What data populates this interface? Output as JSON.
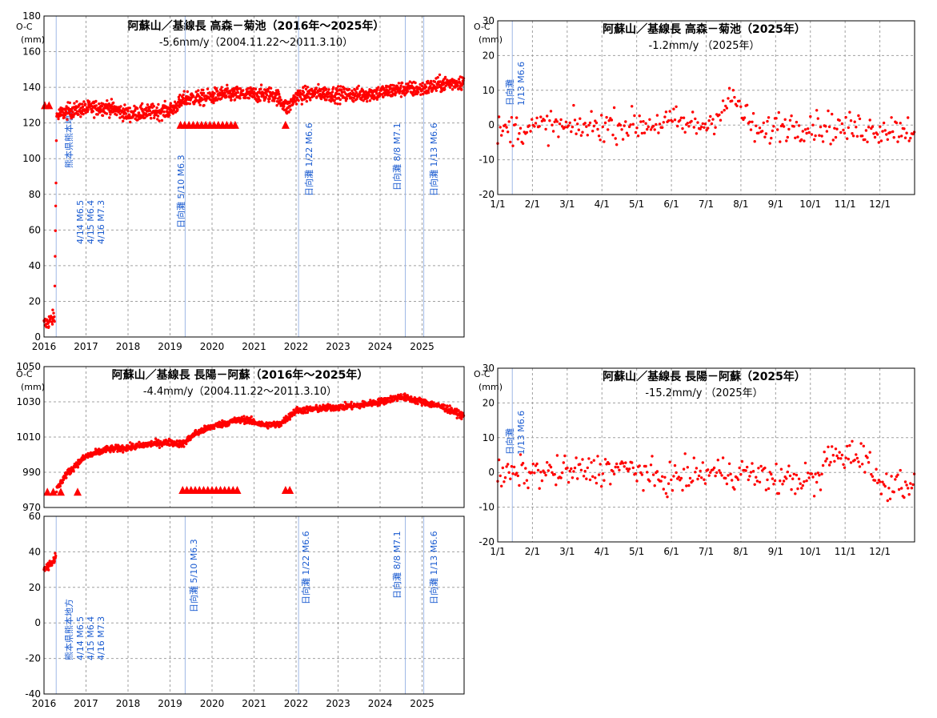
{
  "colors": {
    "dots": "#ff0000",
    "events": "#1a5bd0",
    "grid": "#a0a0a0"
  },
  "years": [
    "2016",
    "2017",
    "2018",
    "2019",
    "2020",
    "2021",
    "2022",
    "2023",
    "2024",
    "2025"
  ],
  "months": [
    "1/1",
    "2/1",
    "3/1",
    "4/1",
    "5/1",
    "6/1",
    "7/1",
    "8/1",
    "9/1",
    "10/1",
    "11/1",
    "12/1"
  ],
  "events": {
    "kumamoto": [
      "熊本県熊本地方",
      "4/14 M6.5",
      "4/15 M6.4",
      "4/16 M7.3"
    ],
    "hyuga_2019": "日向灘 5/10 M6.3",
    "hyuga_2022": "日向灘 1/22 M6.6",
    "hyuga_2024": "日向灘 8/8 M7.1",
    "hyuga_2025": "日向灘 1/13 M6.6"
  },
  "chart_data": [
    {
      "type": "scatter",
      "title": "阿蘇山／基線長 高森－菊池（2016年～2025年）",
      "subtitle": "-5.6mm/y（2004.11.22～2011.3.10）",
      "ylabel": "O-C (mm)",
      "xlim": [
        2016,
        2026
      ],
      "ylim": [
        0,
        180
      ],
      "yticks": [
        0,
        20,
        40,
        60,
        80,
        100,
        120,
        140,
        160,
        180
      ],
      "trend": [
        {
          "x": 2016.0,
          "y": 7
        },
        {
          "x": 2016.25,
          "y": 11
        },
        {
          "x": 2016.3,
          "y": 124
        },
        {
          "x": 2016.6,
          "y": 127
        },
        {
          "x": 2017.0,
          "y": 128
        },
        {
          "x": 2017.5,
          "y": 129
        },
        {
          "x": 2018.0,
          "y": 125
        },
        {
          "x": 2018.5,
          "y": 126
        },
        {
          "x": 2019.0,
          "y": 127
        },
        {
          "x": 2019.4,
          "y": 134
        },
        {
          "x": 2019.8,
          "y": 134
        },
        {
          "x": 2020.2,
          "y": 136
        },
        {
          "x": 2020.6,
          "y": 136
        },
        {
          "x": 2021.0,
          "y": 136
        },
        {
          "x": 2021.5,
          "y": 136
        },
        {
          "x": 2021.8,
          "y": 128
        },
        {
          "x": 2022.0,
          "y": 135
        },
        {
          "x": 2022.5,
          "y": 137
        },
        {
          "x": 2023.0,
          "y": 136
        },
        {
          "x": 2023.5,
          "y": 136
        },
        {
          "x": 2024.0,
          "y": 137
        },
        {
          "x": 2024.5,
          "y": 139
        },
        {
          "x": 2025.0,
          "y": 139
        },
        {
          "x": 2025.5,
          "y": 142
        },
        {
          "x": 2025.99,
          "y": 143
        }
      ],
      "markers": [
        {
          "x": 2016.02,
          "y": 130
        },
        {
          "x": 2016.12,
          "y": 130
        },
        {
          "x": 2019.25,
          "y": 119
        },
        {
          "x": 2019.35,
          "y": 119
        },
        {
          "x": 2019.45,
          "y": 119
        },
        {
          "x": 2019.55,
          "y": 119
        },
        {
          "x": 2019.65,
          "y": 119
        },
        {
          "x": 2019.75,
          "y": 119
        },
        {
          "x": 2019.85,
          "y": 119
        },
        {
          "x": 2019.95,
          "y": 119
        },
        {
          "x": 2020.05,
          "y": 119
        },
        {
          "x": 2020.15,
          "y": 119
        },
        {
          "x": 2020.25,
          "y": 119
        },
        {
          "x": 2020.35,
          "y": 119
        },
        {
          "x": 2020.45,
          "y": 119
        },
        {
          "x": 2020.55,
          "y": 119
        },
        {
          "x": 2021.75,
          "y": 119
        }
      ],
      "events": [
        2016.29,
        2019.36,
        2022.06,
        2024.6,
        2025.04
      ]
    },
    {
      "type": "scatter",
      "title": "阿蘇山／基線長 高森－菊池（2025年）",
      "subtitle": "-1.2mm/y （2025年）",
      "ylabel": "O-C (mm)",
      "xlim": [
        1,
        13
      ],
      "ylim": [
        -20,
        30
      ],
      "yticks": [
        -20,
        -10,
        0,
        10,
        20,
        30
      ],
      "trend": [
        {
          "x": 1.0,
          "y": -2
        },
        {
          "x": 1.5,
          "y": -1
        },
        {
          "x": 2.0,
          "y": -1
        },
        {
          "x": 2.5,
          "y": 0
        },
        {
          "x": 3.0,
          "y": -1
        },
        {
          "x": 4.0,
          "y": 0
        },
        {
          "x": 5.0,
          "y": 0
        },
        {
          "x": 6.0,
          "y": 1
        },
        {
          "x": 6.5,
          "y": 0
        },
        {
          "x": 7.0,
          "y": 0
        },
        {
          "x": 7.5,
          "y": 5
        },
        {
          "x": 7.8,
          "y": 8
        },
        {
          "x": 8.2,
          "y": 1
        },
        {
          "x": 8.6,
          "y": -3
        },
        {
          "x": 9.0,
          "y": 0
        },
        {
          "x": 10.0,
          "y": 0
        },
        {
          "x": 11.0,
          "y": -1
        },
        {
          "x": 12.0,
          "y": -1
        },
        {
          "x": 12.99,
          "y": -1
        }
      ],
      "markers": [],
      "events": [
        1.42
      ]
    },
    {
      "type": "scatter",
      "title": "阿蘇山／基線長 長陽－阿蘇（2016年～2025年）",
      "subtitle": "-4.4mm/y（2004.11.22～2011.3.10）",
      "ylabel": "O-C (mm)",
      "xlim": [
        2016,
        2026
      ],
      "ylim": [
        970,
        1050
      ],
      "yticks": [
        970,
        990,
        1010,
        1030,
        1050
      ],
      "trend": [
        {
          "x": 2016.3,
          "y": 980
        },
        {
          "x": 2016.5,
          "y": 988
        },
        {
          "x": 2016.8,
          "y": 995
        },
        {
          "x": 2017.0,
          "y": 999
        },
        {
          "x": 2017.5,
          "y": 1003
        },
        {
          "x": 2018.0,
          "y": 1004
        },
        {
          "x": 2018.5,
          "y": 1006
        },
        {
          "x": 2019.0,
          "y": 1007
        },
        {
          "x": 2019.3,
          "y": 1006
        },
        {
          "x": 2019.6,
          "y": 1012
        },
        {
          "x": 2020.0,
          "y": 1016
        },
        {
          "x": 2020.5,
          "y": 1019
        },
        {
          "x": 2020.8,
          "y": 1020
        },
        {
          "x": 2021.2,
          "y": 1017
        },
        {
          "x": 2021.6,
          "y": 1017
        },
        {
          "x": 2022.0,
          "y": 1025
        },
        {
          "x": 2022.5,
          "y": 1026
        },
        {
          "x": 2023.0,
          "y": 1027
        },
        {
          "x": 2023.5,
          "y": 1028
        },
        {
          "x": 2024.0,
          "y": 1030
        },
        {
          "x": 2024.5,
          "y": 1033
        },
        {
          "x": 2025.0,
          "y": 1030
        },
        {
          "x": 2025.5,
          "y": 1027
        },
        {
          "x": 2025.99,
          "y": 1022
        }
      ],
      "markers": [
        {
          "x": 2016.08,
          "y": 979
        },
        {
          "x": 2016.22,
          "y": 979
        },
        {
          "x": 2016.4,
          "y": 979
        },
        {
          "x": 2016.8,
          "y": 979
        },
        {
          "x": 2019.3,
          "y": 980
        },
        {
          "x": 2019.4,
          "y": 980
        },
        {
          "x": 2019.5,
          "y": 980
        },
        {
          "x": 2019.6,
          "y": 980
        },
        {
          "x": 2019.7,
          "y": 980
        },
        {
          "x": 2019.8,
          "y": 980
        },
        {
          "x": 2019.9,
          "y": 980
        },
        {
          "x": 2020.0,
          "y": 980
        },
        {
          "x": 2020.1,
          "y": 980
        },
        {
          "x": 2020.2,
          "y": 980
        },
        {
          "x": 2020.3,
          "y": 980
        },
        {
          "x": 2020.4,
          "y": 980
        },
        {
          "x": 2020.5,
          "y": 980
        },
        {
          "x": 2020.6,
          "y": 980
        },
        {
          "x": 2021.75,
          "y": 980
        },
        {
          "x": 2021.85,
          "y": 980
        }
      ],
      "events": []
    },
    {
      "type": "scatter",
      "title": "",
      "subtitle": "",
      "ylabel": "",
      "xlim": [
        2016,
        2026
      ],
      "ylim": [
        -40,
        60
      ],
      "yticks": [
        -40,
        -20,
        0,
        20,
        40,
        60
      ],
      "trend": [
        {
          "x": 2016.0,
          "y": 30
        },
        {
          "x": 2016.15,
          "y": 33
        },
        {
          "x": 2016.28,
          "y": 37
        }
      ],
      "markers": [],
      "events": [
        2016.29,
        2019.36,
        2022.06,
        2024.6,
        2025.04
      ]
    },
    {
      "type": "scatter",
      "title": "阿蘇山／基線長 長陽－阿蘇（2025年）",
      "subtitle": "-15.2mm/y （2025年）",
      "ylabel": "O-C (mm)",
      "xlim": [
        1,
        13
      ],
      "ylim": [
        -20,
        30
      ],
      "yticks": [
        -20,
        -10,
        0,
        10,
        20,
        30
      ],
      "trend": [
        {
          "x": 1.0,
          "y": -1
        },
        {
          "x": 2.0,
          "y": 0
        },
        {
          "x": 3.0,
          "y": 0
        },
        {
          "x": 4.0,
          "y": 1
        },
        {
          "x": 5.0,
          "y": 1
        },
        {
          "x": 5.5,
          "y": -2
        },
        {
          "x": 6.0,
          "y": -2
        },
        {
          "x": 7.0,
          "y": 0
        },
        {
          "x": 8.0,
          "y": 0
        },
        {
          "x": 9.0,
          "y": -2
        },
        {
          "x": 10.0,
          "y": -2
        },
        {
          "x": 10.3,
          "y": -3
        },
        {
          "x": 10.4,
          "y": 4
        },
        {
          "x": 11.0,
          "y": 5
        },
        {
          "x": 11.7,
          "y": 5
        },
        {
          "x": 11.8,
          "y": -3
        },
        {
          "x": 12.5,
          "y": -3
        },
        {
          "x": 12.99,
          "y": -3
        }
      ],
      "markers": [],
      "events": [
        1.42
      ]
    }
  ]
}
